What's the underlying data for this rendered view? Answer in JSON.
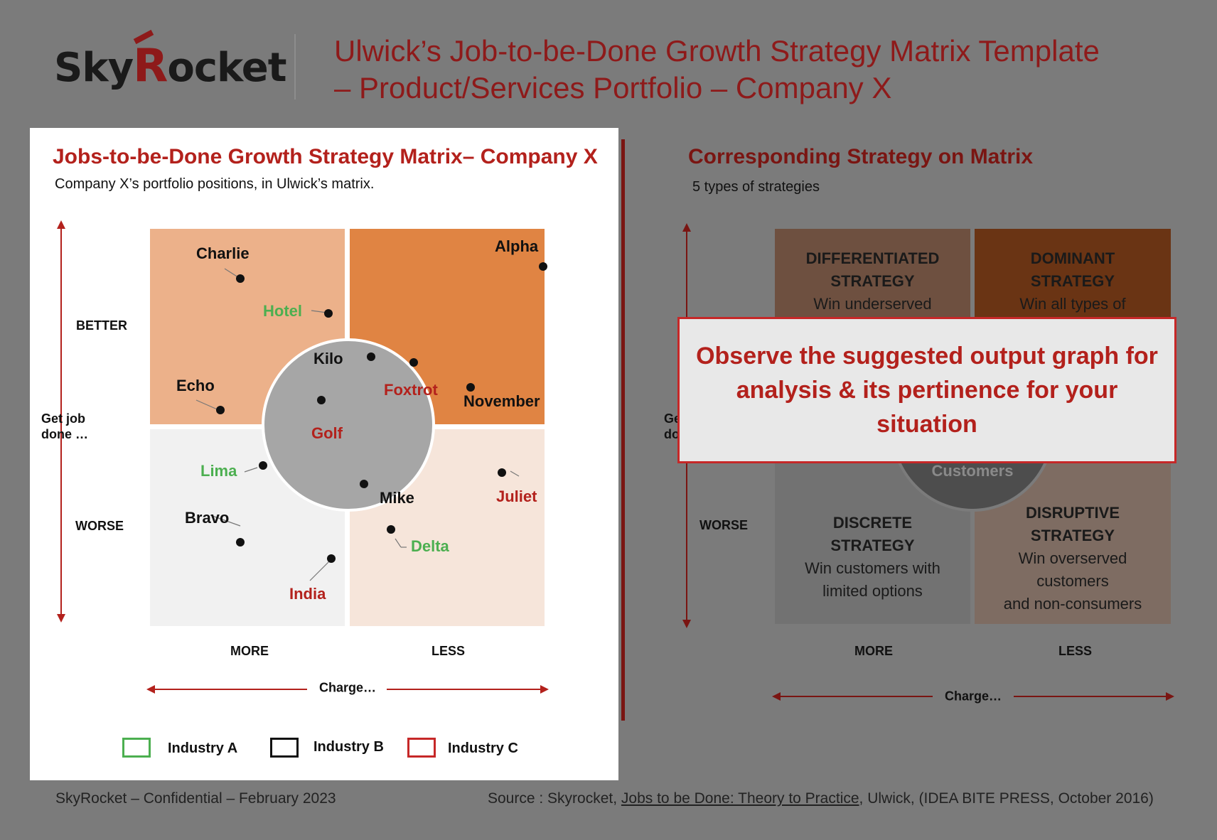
{
  "header": {
    "logo_prefix": "Sky",
    "logo_r": "R",
    "logo_suffix": "ocket",
    "title_line1": "Ulwick’s Job-to-be-Done Growth Strategy Matrix Template",
    "title_line2": "– Product/Services Portfolio – Company X"
  },
  "left": {
    "title": "Jobs-to-be-Done Growth Strategy Matrix– Company X",
    "subtitle": "Company X’s portfolio positions, in Ulwick’s matrix.",
    "y_axis": {
      "top": "BETTER",
      "middle": "Get job\ndone …",
      "bottom": "WORSE"
    },
    "x_axis": {
      "left": "MORE",
      "right": "LESS",
      "title": "Charge…"
    },
    "points": [
      {
        "name": "Charlie",
        "industry": "B"
      },
      {
        "name": "Hotel",
        "industry": "A"
      },
      {
        "name": "Alpha",
        "industry": "B"
      },
      {
        "name": "Kilo",
        "industry": "B"
      },
      {
        "name": "Echo",
        "industry": "B"
      },
      {
        "name": "Foxtrot",
        "industry": "C"
      },
      {
        "name": "November",
        "industry": "B"
      },
      {
        "name": "Golf",
        "industry": "C"
      },
      {
        "name": "Lima",
        "industry": "A"
      },
      {
        "name": "Mike",
        "industry": "B"
      },
      {
        "name": "Juliet",
        "industry": "C"
      },
      {
        "name": "Bravo",
        "industry": "B"
      },
      {
        "name": "Delta",
        "industry": "A"
      },
      {
        "name": "India",
        "industry": "C"
      }
    ],
    "legend": [
      "Industry A",
      "Industry B",
      "Industry C"
    ],
    "colors": {
      "industry_a": "#4caf50",
      "industry_b": "#111111",
      "industry_c": "#c62828",
      "q_tl": "#ecb18a",
      "q_tr": "#e08443",
      "q_bl": "#f1f1f1",
      "q_br": "#f6e5da",
      "center": "#a6a6a6"
    }
  },
  "right": {
    "title": "Corresponding Strategy on Matrix",
    "subtitle": "5 types of strategies",
    "y_axis": {
      "middle_partial": "Ge\ndo",
      "bottom": "WORSE"
    },
    "x_axis": {
      "left": "MORE",
      "right": "LESS",
      "title": "Charge…"
    },
    "quadrants": {
      "tl": {
        "title1": "DIFFERENTIATED",
        "title2": "STRATEGY",
        "desc": "Win underserved"
      },
      "tr": {
        "title1": "DOMINANT",
        "title2": "STRATEGY",
        "desc": "Win all types of"
      },
      "bl": {
        "title1": "DISCRETE",
        "title2": "STRATEGY",
        "desc1": "Win customers with",
        "desc2": "limited options"
      },
      "br": {
        "title1": "DISRUPTIVE",
        "title2": "STRATEGY",
        "desc1": "Win overserved",
        "desc2": "customers",
        "desc3": "and non-consumers"
      },
      "center": "Customers"
    },
    "callout": "Observe the suggested output graph for analysis & its pertinence for your situation"
  },
  "footer": {
    "left": "SkyRocket – Confidential – February 2023",
    "source_prefix": "Source : Skyrocket, ",
    "source_book": "Jobs to be Done: Theory to Practice",
    "source_suffix": ", Ulwick, (IDEA BITE PRESS, October 2016)"
  }
}
